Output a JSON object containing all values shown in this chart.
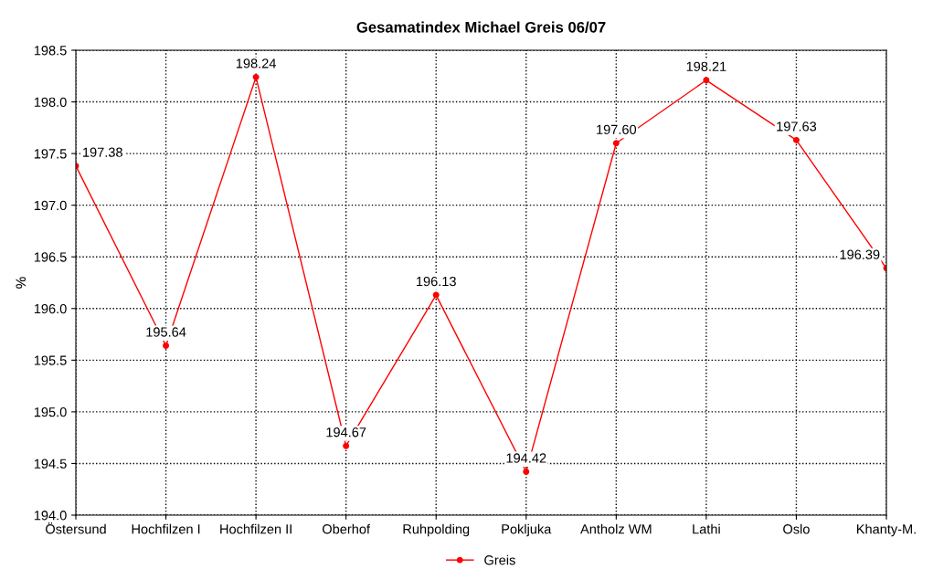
{
  "chart_data": {
    "type": "line",
    "title": "Gesamatindex Michael Greis 06/07",
    "ylabel": "%",
    "categories": [
      "Östersund",
      "Hochfilzen I",
      "Hochfilzen II",
      "Oberhof",
      "Ruhpolding",
      "Pokljuka",
      "Antholz WM",
      "Lathi",
      "Oslo",
      "Khanty-M."
    ],
    "series": [
      {
        "name": "Greis",
        "color": "#ff0000",
        "values": [
          197.38,
          195.64,
          198.24,
          194.67,
          196.13,
          194.42,
          197.6,
          198.21,
          197.63,
          196.39
        ],
        "value_labels": [
          "197.38",
          "195.64",
          "198.24",
          "194.67",
          "196.13",
          "194.42",
          "197.60",
          "198.21",
          "197.63",
          "196.39"
        ]
      }
    ],
    "ylim": [
      194.0,
      198.5
    ],
    "yticks": [
      {
        "value": 194,
        "label": "194.0"
      },
      194.5,
      {
        "value": 195,
        "label": "195.0"
      },
      195.5,
      {
        "value": 196,
        "label": "196.0"
      },
      196.5,
      {
        "value": 197,
        "label": "197.0"
      },
      197.5,
      {
        "value": 198,
        "label": "198.0"
      },
      198.5
    ],
    "grid": true,
    "legend": "bottom",
    "marker": "circle",
    "line_style": "solid"
  }
}
